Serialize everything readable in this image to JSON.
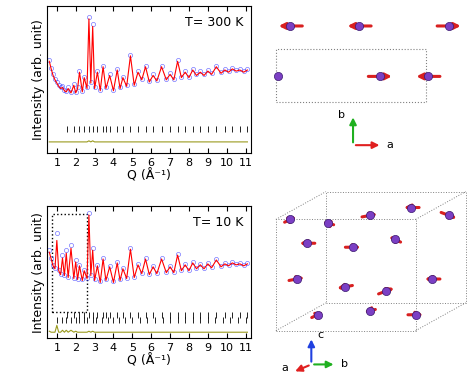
{
  "chart_data": [
    {
      "type": "line",
      "annotation": "T= 300 K",
      "x_label": "Q (Å⁻¹)",
      "y_label": "Intensity (arb. unit)",
      "xlim": [
        0.5,
        11.3
      ],
      "xticks": [
        1,
        2,
        3,
        4,
        5,
        6,
        7,
        8,
        9,
        10,
        11
      ],
      "ylim": [
        -30,
        105
      ],
      "tick_labels": "x",
      "x": [
        0.6,
        0.7,
        0.8,
        0.9,
        1.0,
        1.1,
        1.2,
        1.3,
        1.4,
        1.5,
        1.6,
        1.75,
        1.9,
        2.0,
        2.1,
        2.2,
        2.35,
        2.45,
        2.6,
        2.7,
        2.8,
        2.9,
        3.0,
        3.15,
        3.3,
        3.45,
        3.6,
        3.8,
        4.0,
        4.2,
        4.35,
        4.5,
        4.7,
        4.9,
        5.1,
        5.3,
        5.5,
        5.7,
        5.9,
        6.1,
        6.3,
        6.55,
        6.8,
        7.0,
        7.2,
        7.4,
        7.6,
        7.8,
        8.0,
        8.2,
        8.4,
        8.6,
        8.8,
        9.0,
        9.2,
        9.45,
        9.7,
        9.9,
        10.1,
        10.3,
        10.5,
        10.7,
        10.9,
        11.1
      ],
      "series": [
        {
          "type": "scatter",
          "color": "#3b3bff",
          "marker": "circle",
          "line_style": "none",
          "values": [
            55,
            48,
            42,
            38,
            35,
            32,
            30,
            31,
            28,
            27,
            30,
            26,
            33,
            26,
            30,
            45,
            27,
            40,
            30,
            95,
            35,
            88,
            30,
            45,
            28,
            50,
            30,
            42,
            28,
            47,
            30,
            40,
            32,
            60,
            33,
            45,
            38,
            50,
            36,
            42,
            37,
            50,
            38,
            43,
            38,
            55,
            40,
            45,
            40,
            47,
            42,
            45,
            42,
            46,
            43,
            50,
            44,
            47,
            45,
            48,
            46,
            47,
            45,
            47
          ]
        },
        {
          "type": "line",
          "color": "#ff0000",
          "line_style": "solid",
          "values": [
            54,
            47,
            41,
            37,
            34,
            31,
            29,
            30,
            27,
            26,
            29,
            25,
            32,
            25,
            29,
            44,
            26,
            39,
            29,
            93,
            34,
            86,
            29,
            44,
            27,
            49,
            29,
            41,
            27,
            46,
            29,
            39,
            31,
            59,
            32,
            44,
            37,
            49,
            35,
            41,
            36,
            49,
            37,
            42,
            37,
            54,
            39,
            44,
            39,
            46,
            41,
            44,
            41,
            45,
            42,
            49,
            43,
            46,
            44,
            47,
            45,
            46,
            44,
            46
          ]
        },
        {
          "type": "line",
          "color": "#9a9a1e",
          "line_style": "solid",
          "values": [
            -20,
            -20,
            -20,
            -20,
            -20,
            -20,
            -20,
            -20,
            -20,
            -20,
            -20,
            -20,
            -20,
            -20,
            -20,
            -20,
            -20,
            -20,
            -20,
            -19,
            -20,
            -19,
            -20,
            -20,
            -20,
            -20,
            -20,
            -20,
            -20,
            -20,
            -20,
            -20,
            -20,
            -20,
            -20,
            -20,
            -20,
            -20,
            -20,
            -20,
            -20,
            -20,
            -20,
            -20,
            -20,
            -20,
            -20,
            -20,
            -20,
            -20,
            -20,
            -20,
            -20,
            -20,
            -20,
            -20,
            -20,
            -20,
            -20,
            -20,
            -20,
            -20,
            -20,
            -20
          ]
        },
        {
          "type": "scatter",
          "color": "#000000",
          "marker": "vline",
          "line_style": "none",
          "x": [
            1.55,
            1.9,
            2.2,
            2.45,
            2.7,
            2.9,
            3.15,
            3.45,
            3.6,
            3.8,
            4.2,
            4.5,
            4.9,
            5.3,
            5.7,
            6.1,
            6.55,
            7.0,
            7.4,
            7.8,
            8.2,
            8.6,
            9.0,
            9.45,
            9.9,
            10.3,
            10.7,
            11.1
          ],
          "values": [
            -8,
            -8,
            -8,
            -8,
            -8,
            -8,
            -8,
            -8,
            -8,
            -8,
            -8,
            -8,
            -8,
            -8,
            -8,
            -8,
            -8,
            -8,
            -8,
            -8,
            -8,
            -8,
            -8,
            -8,
            -8,
            -8,
            -8,
            -8
          ]
        }
      ]
    },
    {
      "type": "line",
      "annotation": "T= 10 K",
      "x_label": "Q (Å⁻¹)",
      "y_label": "Intensity (arb. unit)",
      "xlim": [
        0.5,
        11.3
      ],
      "xticks": [
        1,
        2,
        3,
        4,
        5,
        6,
        7,
        8,
        9,
        10,
        11
      ],
      "ylim": [
        -30,
        105
      ],
      "tick_labels": "x",
      "x": [
        0.6,
        0.7,
        0.8,
        0.9,
        1.0,
        1.1,
        1.2,
        1.3,
        1.4,
        1.5,
        1.6,
        1.75,
        1.9,
        2.0,
        2.1,
        2.2,
        2.35,
        2.45,
        2.6,
        2.7,
        2.8,
        2.9,
        3.0,
        3.15,
        3.3,
        3.45,
        3.6,
        3.8,
        4.0,
        4.2,
        4.35,
        4.5,
        4.7,
        4.9,
        5.1,
        5.3,
        5.5,
        5.7,
        5.9,
        6.1,
        6.3,
        6.55,
        6.8,
        7.0,
        7.2,
        7.4,
        7.6,
        7.8,
        8.0,
        8.2,
        8.4,
        8.6,
        8.8,
        9.0,
        9.2,
        9.45,
        9.7,
        9.9,
        10.1,
        10.3,
        10.5,
        10.7,
        10.9,
        11.1
      ],
      "series": [
        {
          "type": "scatter",
          "color": "#3b3bff",
          "marker": "circle",
          "line_style": "none",
          "values": [
            60,
            52,
            45,
            42,
            78,
            40,
            36,
            55,
            35,
            60,
            33,
            65,
            32,
            50,
            31,
            45,
            30,
            40,
            32,
            98,
            35,
            62,
            30,
            45,
            28,
            52,
            30,
            44,
            28,
            48,
            30,
            42,
            32,
            62,
            33,
            46,
            37,
            52,
            36,
            44,
            37,
            52,
            38,
            44,
            38,
            56,
            40,
            46,
            40,
            48,
            42,
            46,
            42,
            47,
            43,
            51,
            44,
            47,
            45,
            48,
            46,
            47,
            45,
            47
          ]
        },
        {
          "type": "line",
          "color": "#ff0000",
          "line_style": "solid",
          "values": [
            58,
            51,
            44,
            41,
            70,
            39,
            35,
            52,
            34,
            57,
            32,
            62,
            31,
            48,
            30,
            44,
            29,
            39,
            31,
            96,
            34,
            60,
            29,
            44,
            27,
            51,
            29,
            43,
            27,
            47,
            29,
            41,
            31,
            61,
            32,
            45,
            36,
            51,
            35,
            43,
            36,
            51,
            37,
            43,
            37,
            55,
            39,
            45,
            39,
            47,
            41,
            45,
            41,
            46,
            42,
            50,
            43,
            46,
            44,
            47,
            45,
            46,
            44,
            46
          ]
        },
        {
          "type": "line",
          "color": "#9a9a1e",
          "line_style": "solid",
          "values": [
            -23,
            -24,
            -24,
            -24,
            -17,
            -24,
            -24,
            -22,
            -24,
            -22,
            -24,
            -22,
            -24,
            -23,
            -24,
            -24,
            -24,
            -24,
            -24,
            -23,
            -24,
            -23,
            -24,
            -24,
            -24,
            -24,
            -24,
            -24,
            -24,
            -24,
            -24,
            -24,
            -24,
            -24,
            -24,
            -24,
            -24,
            -24,
            -24,
            -24,
            -24,
            -24,
            -24,
            -24,
            -24,
            -24,
            -24,
            -24,
            -24,
            -24,
            -24,
            -24,
            -24,
            -24,
            -24,
            -24,
            -24,
            -24,
            -24,
            -24,
            -24,
            -24,
            -24,
            -24
          ]
        },
        {
          "type": "scatter",
          "color": "#000000",
          "marker": "vline",
          "line_style": "none",
          "x": [
            1.55,
            1.9,
            2.2,
            2.45,
            2.7,
            2.9,
            3.15,
            3.45,
            3.6,
            3.8,
            4.2,
            4.5,
            4.9,
            5.3,
            5.7,
            6.1,
            6.55,
            7.0,
            7.4,
            7.8,
            8.2,
            8.6,
            9.0,
            9.45,
            9.9,
            10.3,
            10.7,
            11.1
          ],
          "values": [
            -6,
            -6,
            -6,
            -6,
            -6,
            -6,
            -6,
            -6,
            -6,
            -6,
            -6,
            -6,
            -6,
            -6,
            -6,
            -6,
            -6,
            -6,
            -6,
            -6,
            -6,
            -6,
            -6,
            -6,
            -6,
            -6,
            -6,
            -6
          ]
        },
        {
          "type": "scatter",
          "color": "#000000",
          "marker": "vline",
          "line_style": "none",
          "x": [
            1.0,
            1.3,
            1.5,
            1.75,
            2.0,
            2.2,
            2.45,
            2.6,
            2.9,
            3.1,
            3.4,
            3.7,
            4.0,
            4.3,
            4.6,
            5.0,
            5.4,
            5.8,
            6.2,
            6.6,
            7.0,
            7.4,
            7.8,
            8.2,
            8.6,
            9.0,
            9.4,
            9.8,
            10.2,
            10.6,
            11.0
          ],
          "values": [
            -12,
            -12,
            -12,
            -12,
            -12,
            -12,
            -12,
            -12,
            -12,
            -12,
            -12,
            -12,
            -12,
            -12,
            -12,
            -12,
            -12,
            -12,
            -12,
            -12,
            -12,
            -12,
            -12,
            -12,
            -12,
            -12,
            -12,
            -12,
            -12,
            -12,
            -12
          ]
        }
      ]
    }
  ],
  "diagrams": [
    {
      "axis_labels": [
        "b",
        "a"
      ]
    },
    {
      "axis_labels": [
        "c",
        "a",
        "b"
      ]
    }
  ]
}
